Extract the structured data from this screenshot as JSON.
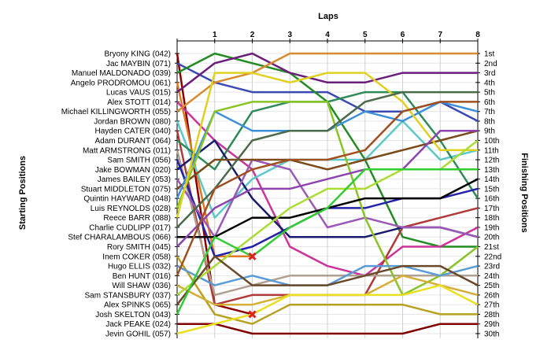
{
  "chart_data": {
    "type": "line",
    "title": "",
    "xlabel": "Laps",
    "ylabel_left": "Starting Positions",
    "ylabel_right": "Finishing Positions",
    "laps": [
      1,
      2,
      3,
      4,
      5,
      6,
      7,
      8
    ],
    "x": [
      0,
      1,
      2,
      3,
      4,
      5,
      6,
      7,
      8
    ],
    "y_reversed": true,
    "ylim": [
      1,
      30
    ],
    "grid": true,
    "finishing_labels": [
      "1st",
      "2nd",
      "3rd",
      "4th",
      "5th",
      "6th",
      "7th",
      "8th",
      "9th",
      "10th",
      "11th",
      "12th",
      "13th",
      "14th",
      "15th",
      "16th",
      "17th",
      "18th",
      "19th",
      "20th",
      "21st",
      "22nd",
      "23rd",
      "24th",
      "25th",
      "26th",
      "27th",
      "28th",
      "29th",
      "30th"
    ],
    "series": [
      {
        "name": "Bryony KING (042)",
        "color": "#8b0000",
        "values": [
          1,
          27,
          28,
          null,
          null,
          null,
          null,
          null,
          null
        ],
        "retired": true
      },
      {
        "name": "Jac MAYBIN (071)",
        "color": "#3a4ab0",
        "values": [
          2,
          4,
          5,
          5,
          5,
          7,
          7,
          6,
          8
        ]
      },
      {
        "name": "Manuel MALDONADO (039)",
        "color": "#228b22",
        "values": [
          3,
          1,
          2,
          3,
          6,
          12,
          20,
          21,
          21
        ]
      },
      {
        "name": "Angelo PRODROMOU (061)",
        "color": "#e07820",
        "values": [
          4,
          22,
          22,
          null,
          null,
          null,
          null,
          null,
          null
        ],
        "retired": true
      },
      {
        "name": "Lucas VAUS (015)",
        "color": "#6b1f7a",
        "values": [
          5,
          2,
          1,
          3,
          4,
          4,
          3,
          3,
          3
        ]
      },
      {
        "name": "Alex STOTT (014)",
        "color": "#cc3399",
        "values": [
          6,
          10,
          13,
          21,
          23,
          24,
          21,
          21,
          19
        ]
      },
      {
        "name": "Michael KILLINGWORTH (055)",
        "color": "#d88a2e",
        "values": [
          7,
          4,
          3,
          1,
          1,
          1,
          1,
          1,
          1
        ]
      },
      {
        "name": "Jordan BROWN (080)",
        "color": "#5cc8c8",
        "values": [
          8,
          18,
          14,
          12,
          12,
          12,
          8,
          12,
          11
        ]
      },
      {
        "name": "Hayden CATER (040)",
        "color": "#b03a3a",
        "values": [
          9,
          27,
          26,
          26,
          26,
          26,
          19,
          18,
          17
        ]
      },
      {
        "name": "Adam DURANT (064)",
        "color": "#2e8b57",
        "values": [
          10,
          13,
          7,
          6,
          6,
          5,
          5,
          10,
          16
        ]
      },
      {
        "name": "Matt ARMSTRONG (011)",
        "color": "#b0a090",
        "values": [
          11,
          26,
          25,
          24,
          24,
          24,
          24,
          24,
          24
        ]
      },
      {
        "name": "Sam SMITH (056)",
        "color": "#2222aa",
        "values": [
          12,
          22,
          21,
          19,
          17,
          17,
          16,
          16,
          15
        ]
      },
      {
        "name": "Jake BOWMAN (020)",
        "color": "#1a1a6e",
        "values": [
          13,
          10,
          16,
          20,
          20,
          20,
          19,
          19,
          20
        ]
      },
      {
        "name": "James BAILEY (053)",
        "color": "#9b59b6",
        "values": [
          14,
          20,
          12,
          13,
          19,
          18,
          19,
          19,
          20
        ]
      },
      {
        "name": "Stuart MIDDLETON (075)",
        "color": "#7a4a1a",
        "values": [
          15,
          12,
          12,
          12,
          13,
          12,
          11,
          10,
          9
        ]
      },
      {
        "name": "Quintin HAYWARD (048)",
        "color": "#3b8fd9",
        "values": [
          16,
          7,
          9,
          9,
          9,
          7,
          8,
          6,
          7
        ]
      },
      {
        "name": "Luis REYNOLDS (028)",
        "color": "#88c425",
        "values": [
          17,
          7,
          6,
          6,
          6,
          18,
          26,
          24,
          21
        ]
      },
      {
        "name": "Reece BARR (088)",
        "color": "#e0d020",
        "values": [
          18,
          3,
          3,
          4,
          3,
          3,
          6,
          11,
          11
        ]
      },
      {
        "name": "Charlie CUDLIPP (017)",
        "color": "#4a6a4a",
        "values": [
          19,
          15,
          10,
          9,
          9,
          6,
          5,
          5,
          5
        ]
      },
      {
        "name": "Stef CHARALAMBOUS (066)",
        "color": "#000000",
        "values": [
          20,
          20,
          18,
          18,
          17,
          16,
          16,
          16,
          14
        ]
      },
      {
        "name": "Rory SMITH (045)",
        "color": "#8e44ad",
        "values": [
          21,
          17,
          15,
          15,
          14,
          13,
          13,
          9,
          9
        ]
      },
      {
        "name": "Inem COKER (058)",
        "color": "#b8a020",
        "values": [
          22,
          28,
          29,
          27,
          27,
          27,
          27,
          28,
          28
        ]
      },
      {
        "name": "Hugo ELLIS (032)",
        "color": "#5a9bd5",
        "values": [
          23,
          25,
          24,
          25,
          25,
          23,
          23,
          24,
          23
        ]
      },
      {
        "name": "Ben HUNT (016)",
        "color": "#a05020",
        "values": [
          24,
          15,
          13,
          12,
          12,
          11,
          7,
          6,
          6
        ]
      },
      {
        "name": "Will SHAW (036)",
        "color": "#d4af37",
        "values": [
          25,
          27,
          27,
          26,
          26,
          26,
          24,
          25,
          26
        ]
      },
      {
        "name": "Sam STANSBURY (037)",
        "color": "#aadd33",
        "values": [
          26,
          23,
          20,
          17,
          15,
          15,
          13,
          13,
          10
        ]
      },
      {
        "name": "Alex SPINKS (065)",
        "color": "#6a4a2a",
        "values": [
          27,
          22,
          25,
          25,
          25,
          24,
          23,
          23,
          25
        ]
      },
      {
        "name": "Josh SKELTON (043)",
        "color": "#32cd32",
        "values": [
          28,
          20,
          22,
          19,
          17,
          13,
          13,
          13,
          13
        ]
      },
      {
        "name": "Jack PEAKE (024)",
        "color": "#800000",
        "values": [
          29,
          29,
          30,
          30,
          30,
          30,
          30,
          29,
          29
        ]
      },
      {
        "name": "Jevin GOHIL (057)",
        "color": "#e8e020",
        "values": [
          30,
          29,
          28,
          26,
          26,
          26,
          26,
          25,
          27
        ]
      }
    ],
    "retirements": [
      {
        "series": "Bryony KING (042)",
        "lap": 2,
        "position": 28
      },
      {
        "series": "Angelo PRODROMOU (061)",
        "lap": 2,
        "position": 22
      }
    ]
  }
}
